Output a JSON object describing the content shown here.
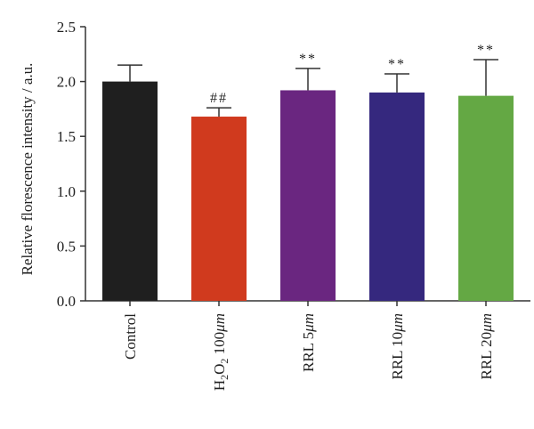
{
  "chart_data": {
    "type": "bar",
    "ylabel": "Relative florescence intensity / a.u.",
    "ylim": [
      0,
      2.5
    ],
    "yticks": [
      "0.0",
      "0.5",
      "1.0",
      "1.5",
      "2.0",
      "2.5"
    ],
    "grid": false,
    "categories": [
      {
        "text": "Control",
        "subscript": null,
        "suffix": null,
        "unit": null
      },
      {
        "text": "H",
        "subscript": "2",
        "suffix": "O",
        "subscript2": "2",
        "tail": " 100",
        "unit": "μm"
      },
      {
        "text": "RRL 5",
        "subscript": null,
        "suffix": null,
        "unit": "μm"
      },
      {
        "text": "RRL 10",
        "subscript": null,
        "suffix": null,
        "unit": "μm"
      },
      {
        "text": "RRL 20",
        "subscript": null,
        "suffix": null,
        "unit": "μm"
      }
    ],
    "values": [
      2.0,
      1.68,
      1.92,
      1.9,
      1.87
    ],
    "errors": [
      0.15,
      0.08,
      0.2,
      0.17,
      0.33
    ],
    "annotations": [
      "",
      "##",
      "**",
      "**",
      "**"
    ],
    "colors": [
      "#1f1f1f",
      "#d03a1e",
      "#6a2680",
      "#35287e",
      "#64a844"
    ]
  }
}
